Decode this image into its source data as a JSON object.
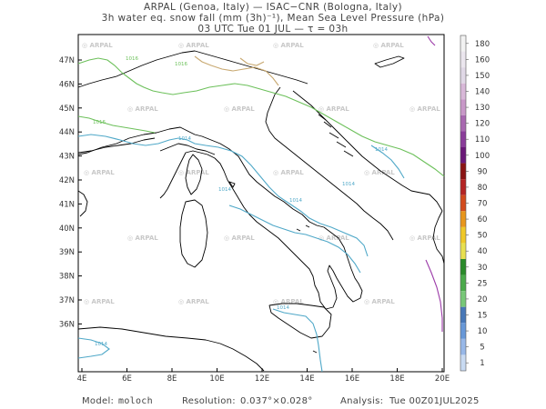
{
  "header": {
    "line1": "ARPAL (Genoa, Italy)  —  ISAC−CNR (Bologna, Italy)",
    "line2": "3h water eq. snow fall (mm (3h)⁻¹), Mean Sea Level Pressure (hPa)",
    "line3": "03 UTC Tue 01 JUL  —  τ = 03h"
  },
  "map": {
    "lat_labels": [
      "47N",
      "46N",
      "45N",
      "44N",
      "43N",
      "42N",
      "41N",
      "40N",
      "39N",
      "38N",
      "37N",
      "36N"
    ],
    "lon_labels": [
      "4E",
      "6E",
      "8E",
      "10E",
      "12E",
      "14E",
      "16E",
      "18E",
      "20E"
    ],
    "watermark": "ARPAL",
    "isobar_labels": [
      "1016",
      "1016",
      "1016",
      "1014",
      "1014",
      "1014",
      "1014",
      "1014",
      "1014",
      "1014"
    ],
    "colors": {
      "coast": "#000000",
      "isobar_1014": "#4fa8c8",
      "isobar_1016": "#6cc05a",
      "isobar_1018": "#c8a870",
      "isobar_east": "#9b3aa8"
    }
  },
  "colorbar": {
    "labels": [
      "180",
      "160",
      "150",
      "140",
      "130",
      "120",
      "110",
      "100",
      "90",
      "80",
      "70",
      "60",
      "50",
      "40",
      "30",
      "25",
      "20",
      "15",
      "10",
      "5",
      "1"
    ],
    "colors": [
      "#f2f2f2",
      "#ebe6ee",
      "#e0d8e6",
      "#d8b8d8",
      "#c898c8",
      "#a868b0",
      "#8a3c9a",
      "#6a1878",
      "#8a1414",
      "#b42424",
      "#d24a1c",
      "#e8961c",
      "#f0c828",
      "#e8e050",
      "#2a8a2a",
      "#4aaa4a",
      "#78c878",
      "#4878b8",
      "#6898d8",
      "#98b8e8",
      "#c8daf2"
    ]
  },
  "footer": {
    "model_label": "Model:",
    "model_value": "moloch",
    "resolution_label": "Resolution:",
    "resolution_value": "0.037°×0.028°",
    "analysis_label": "Analysis:",
    "analysis_value": "Tue 00Z01JUL2025"
  }
}
